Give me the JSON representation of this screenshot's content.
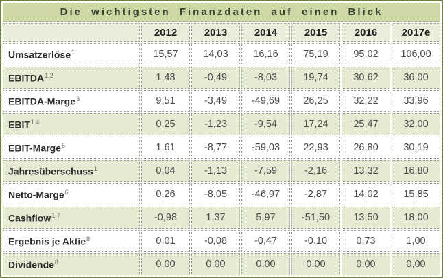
{
  "chart_data": {
    "type": "table",
    "title": "Die wichtigsten Finanzdaten auf einen Blick",
    "columns": [
      "2012",
      "2013",
      "2014",
      "2015",
      "2016",
      "2017e"
    ],
    "rows": [
      {
        "label": "Umsatzerlöse",
        "footnote": "1",
        "values": [
          "15,57",
          "14,03",
          "16,16",
          "75,19",
          "95,02",
          "106,00"
        ]
      },
      {
        "label": "EBITDA",
        "footnote": "1.2",
        "values": [
          "1,48",
          "-0,49",
          "-8,03",
          "19,74",
          "30,62",
          "36,00"
        ]
      },
      {
        "label": "EBITDA-Marge",
        "footnote": "3",
        "values": [
          "9,51",
          "-3,49",
          "-49,69",
          "26,25",
          "32,22",
          "33,96"
        ]
      },
      {
        "label": "EBIT",
        "footnote": "1.4",
        "values": [
          "0,25",
          "-1,23",
          "-9,54",
          "17,24",
          "25,47",
          "32,00"
        ]
      },
      {
        "label": "EBIT-Marge",
        "footnote": "5",
        "values": [
          "1,61",
          "-8,77",
          "-59,03",
          "22,93",
          "26,80",
          "30,19"
        ]
      },
      {
        "label": "Jahresüberschuss",
        "footnote": "1",
        "values": [
          "0,04",
          "-1,13",
          "-7,59",
          "-2,16",
          "13,32",
          "16,80"
        ]
      },
      {
        "label": "Netto-Marge",
        "footnote": "6",
        "values": [
          "0,26",
          "-8,05",
          "-46,97",
          "-2,87",
          "14,02",
          "15,85"
        ]
      },
      {
        "label": "Cashflow",
        "footnote": "1.7",
        "values": [
          "-0,98",
          "1,37",
          "5,97",
          "-51,50",
          "13,50",
          "18,00"
        ]
      },
      {
        "label": "Ergebnis je Aktie",
        "footnote": "8",
        "values": [
          "0,01",
          "-0,08",
          "-0,47",
          "-0.10",
          "0,73",
          "1,00"
        ]
      },
      {
        "label": "Dividende",
        "footnote": "8",
        "values": [
          "0,00",
          "0,00",
          "0,00",
          "0,00",
          "0,00",
          "0,00"
        ]
      }
    ]
  },
  "colors": {
    "frame_border": "#72804a",
    "title_bg": "#cdd8a5",
    "title_text": "#3a402f",
    "header_bg": "#e9eedb",
    "stripe_bg": "#e5ebd3",
    "white_bg": "#ffffff",
    "dotted_border": "#979d8b",
    "label_text": "#2f2f2f",
    "value_text": "#4b4b4b",
    "footnote_text": "#6b6b6b"
  }
}
